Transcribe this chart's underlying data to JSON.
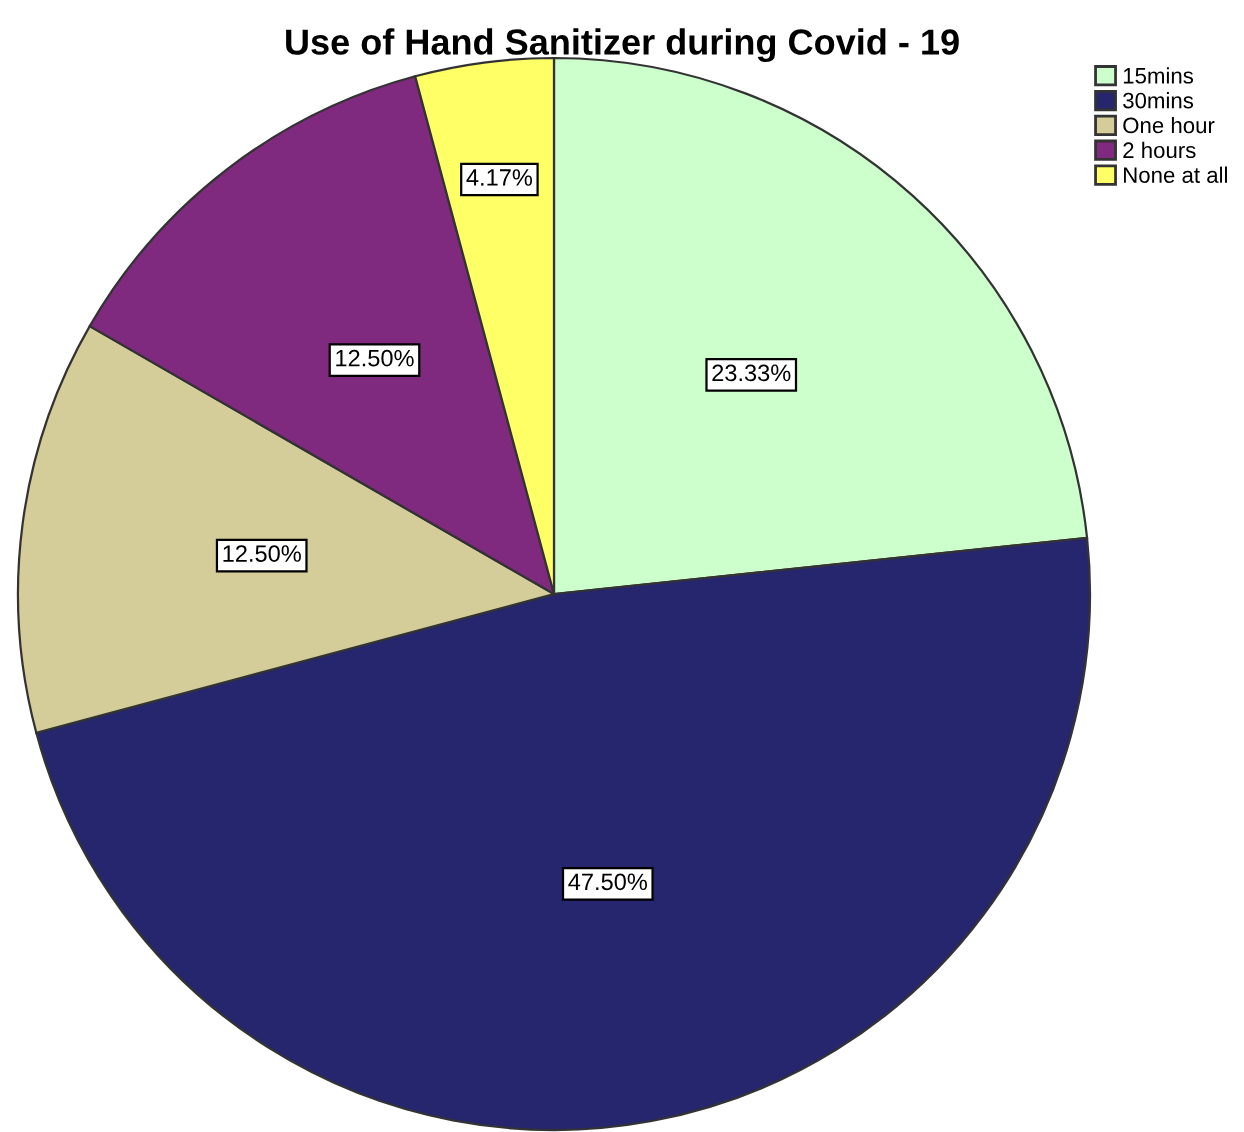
{
  "chart_data": {
    "type": "pie",
    "title": "Use of Hand Sanitizer during Covid - 19",
    "categories": [
      "15mins",
      "30mins",
      "One hour",
      "2 hours",
      "None at all"
    ],
    "values": [
      23.33,
      47.5,
      12.5,
      12.5,
      4.17
    ],
    "colors": [
      "#ccffcc",
      "#26266e",
      "#d4cc99",
      "#7f2a7f",
      "#ffff66"
    ],
    "value_labels": [
      "23.33%",
      "47.50%",
      "12.50%",
      "12.50%",
      "4.17%"
    ],
    "legend": "top right"
  }
}
